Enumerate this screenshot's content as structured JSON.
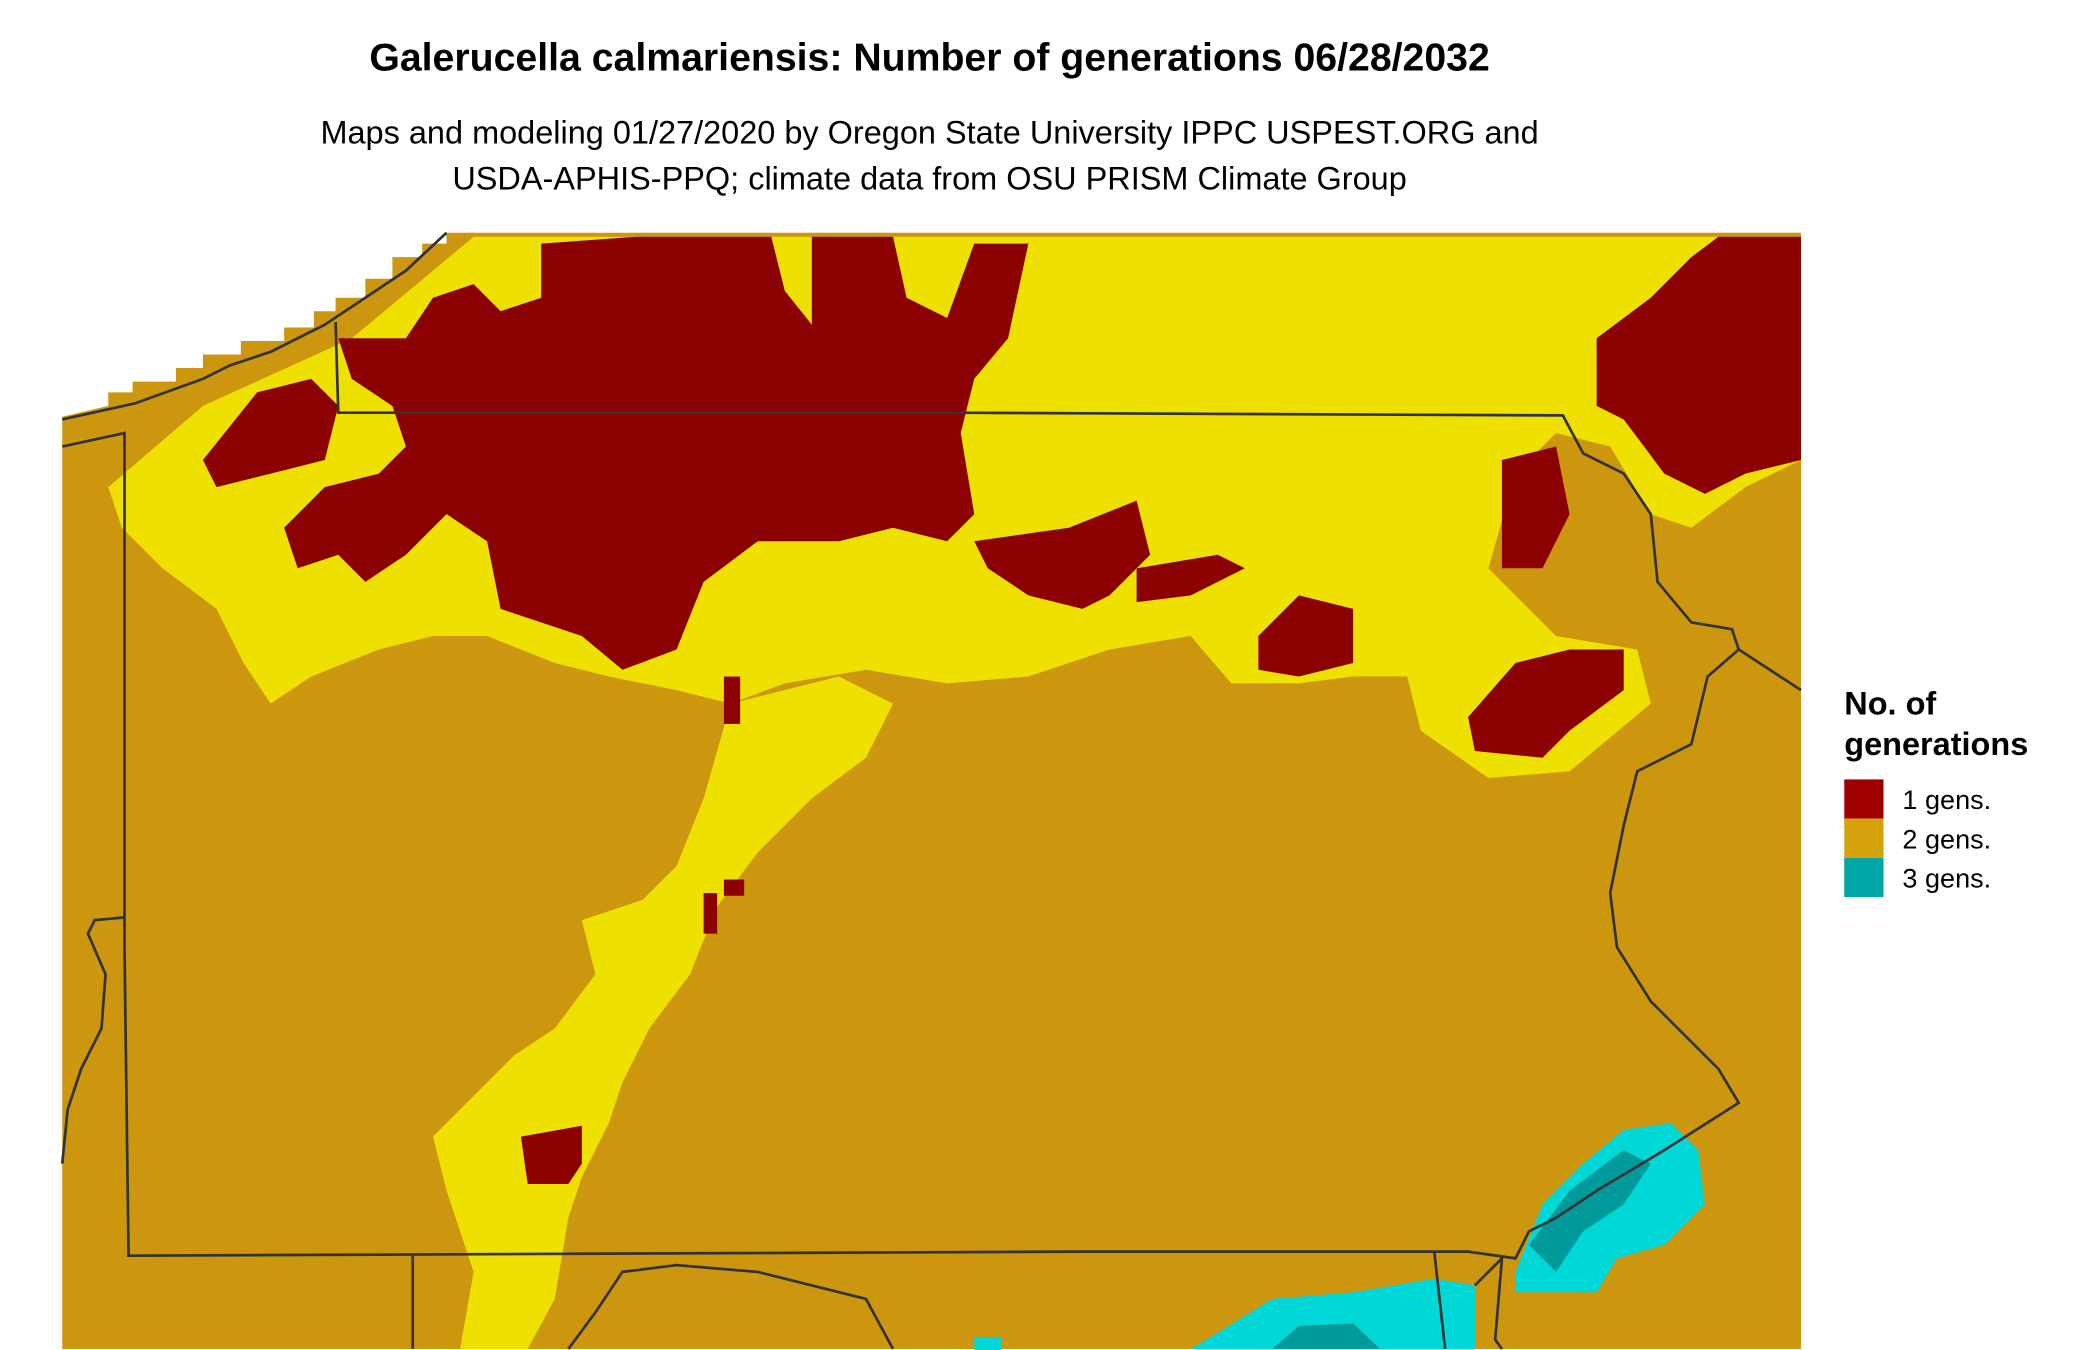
{
  "header": {
    "title": "Galerucella calmariensis: Number of generations 06/28/2032",
    "subtitle": [
      "Maps and modeling 01/27/2020 by Oregon State University IPPC USPEST.ORG and",
      "USDA-APHIS-PPQ; climate data from OSU PRISM Climate Group"
    ]
  },
  "legend": {
    "title": [
      "No. of",
      "generations"
    ],
    "items": [
      {
        "label": "1 gens.",
        "color": "#a00000"
      },
      {
        "label": "2 gens.",
        "color": "#d4a20a"
      },
      {
        "label": "3 gens.",
        "color": "#00a5a5"
      }
    ]
  }
}
